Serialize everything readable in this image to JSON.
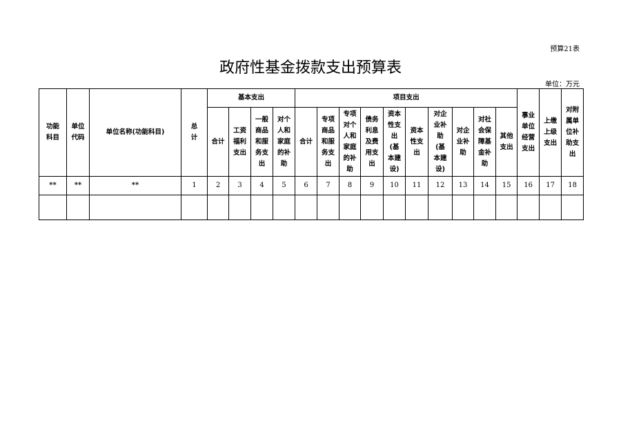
{
  "form_no": "预算21表",
  "title": "政府性基金拨款支出预算表",
  "unit": "单位：万元",
  "headers": {
    "func_subject": "功能\n科目",
    "unit_code": "单位\n代码",
    "unit_name": "单位名称(功能科目)",
    "total": "总\n计",
    "basic": "基本支出",
    "basic_cols": [
      "合计",
      "工资\n福利\n支出",
      "一般\n商品\n和服\n务支\n出",
      "对个\n人和\n家庭\n的补\n助"
    ],
    "project": "项目支出",
    "project_cols": [
      "合计",
      "专项\n商品\n和服\n务支\n出",
      "专项\n对个\n人和\n家庭\n的补\n助",
      "债务\n利息\n及费\n用支\n出",
      "资本\n性支\n出\n(基\n本建\n设)",
      "资本\n性支\n出",
      "对企\n业补\n助\n(基\n本建\n设)",
      "对企\n业补\n助",
      "对社\n会保\n障基\n金补\n助",
      "其他\n支出"
    ],
    "enterprise": "事业\n单位\n经营\n支出",
    "remit": "上缴\n上级\n支出",
    "subsidiary": "对附\n属单\n位补\n助支\n出"
  },
  "index_row": [
    "**",
    "**",
    "**",
    "1",
    "2",
    "3",
    "4",
    "5",
    "6",
    "7",
    "8",
    "9",
    "10",
    "11",
    "12",
    "13",
    "14",
    "15",
    "16",
    "17",
    "18"
  ]
}
